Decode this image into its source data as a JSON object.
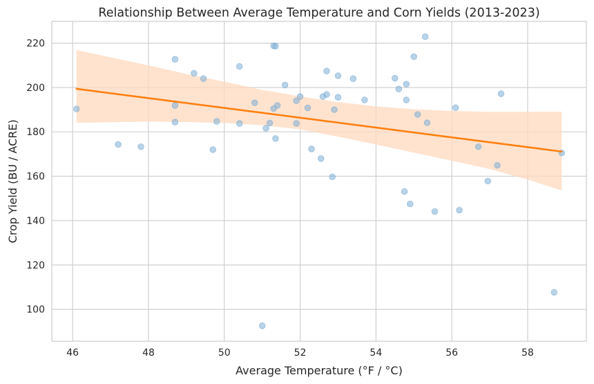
{
  "chart_data": {
    "type": "scatter",
    "title": "Relationship Between Average Temperature and Corn Yields (2013-2023)",
    "xlabel": "Average Temperature (°F / °C)",
    "ylabel": "Crop Yield (BU / ACRE)",
    "xlim": [
      45.45,
      59.55
    ],
    "ylim": [
      85.6,
      229.8
    ],
    "x_ticks": [
      46,
      48,
      50,
      52,
      54,
      56,
      58
    ],
    "y_ticks": [
      100,
      120,
      140,
      160,
      180,
      200,
      220
    ],
    "grid": true,
    "colors": {
      "points": "#7eaed6",
      "trend": "#ff7f0e",
      "band": "#ffd9bf"
    },
    "points": [
      {
        "x": 46.1,
        "y": 190.3
      },
      {
        "x": 47.2,
        "y": 174.3
      },
      {
        "x": 47.8,
        "y": 173.3
      },
      {
        "x": 48.7,
        "y": 212.7
      },
      {
        "x": 48.7,
        "y": 191.9
      },
      {
        "x": 48.7,
        "y": 184.4
      },
      {
        "x": 49.2,
        "y": 206.4
      },
      {
        "x": 49.45,
        "y": 204.0
      },
      {
        "x": 49.7,
        "y": 172.0
      },
      {
        "x": 49.8,
        "y": 184.7
      },
      {
        "x": 50.4,
        "y": 209.5
      },
      {
        "x": 50.4,
        "y": 183.8
      },
      {
        "x": 50.8,
        "y": 193.1
      },
      {
        "x": 51.0,
        "y": 92.6
      },
      {
        "x": 51.1,
        "y": 181.6
      },
      {
        "x": 51.2,
        "y": 184.0
      },
      {
        "x": 51.3,
        "y": 218.8
      },
      {
        "x": 51.35,
        "y": 218.6
      },
      {
        "x": 51.3,
        "y": 190.5
      },
      {
        "x": 51.4,
        "y": 191.9
      },
      {
        "x": 51.35,
        "y": 177.0
      },
      {
        "x": 51.6,
        "y": 201.1
      },
      {
        "x": 51.9,
        "y": 194.0
      },
      {
        "x": 51.9,
        "y": 183.8
      },
      {
        "x": 52.0,
        "y": 195.9
      },
      {
        "x": 52.2,
        "y": 190.8
      },
      {
        "x": 52.3,
        "y": 172.3
      },
      {
        "x": 52.55,
        "y": 168.0
      },
      {
        "x": 52.6,
        "y": 195.9
      },
      {
        "x": 52.7,
        "y": 207.4
      },
      {
        "x": 52.7,
        "y": 196.9
      },
      {
        "x": 52.85,
        "y": 159.7
      },
      {
        "x": 52.9,
        "y": 190.0
      },
      {
        "x": 53.0,
        "y": 205.3
      },
      {
        "x": 53.0,
        "y": 195.6
      },
      {
        "x": 53.4,
        "y": 204.0
      },
      {
        "x": 53.7,
        "y": 194.4
      },
      {
        "x": 54.5,
        "y": 204.2
      },
      {
        "x": 54.6,
        "y": 199.3
      },
      {
        "x": 54.75,
        "y": 153.1
      },
      {
        "x": 54.8,
        "y": 201.5
      },
      {
        "x": 54.8,
        "y": 194.4
      },
      {
        "x": 54.9,
        "y": 147.5
      },
      {
        "x": 55.0,
        "y": 213.9
      },
      {
        "x": 55.1,
        "y": 187.8
      },
      {
        "x": 55.3,
        "y": 222.9
      },
      {
        "x": 55.35,
        "y": 184.1
      },
      {
        "x": 55.55,
        "y": 144.1
      },
      {
        "x": 56.1,
        "y": 190.9
      },
      {
        "x": 56.2,
        "y": 144.7
      },
      {
        "x": 56.7,
        "y": 173.3
      },
      {
        "x": 56.95,
        "y": 157.8
      },
      {
        "x": 57.2,
        "y": 164.9
      },
      {
        "x": 57.3,
        "y": 197.2
      },
      {
        "x": 58.7,
        "y": 107.7
      },
      {
        "x": 58.9,
        "y": 170.5
      }
    ],
    "trend_line": {
      "x": [
        46.1,
        58.9
      ],
      "y": [
        199.4,
        171.1
      ]
    },
    "confidence_band": {
      "x": [
        46.1,
        47.0,
        48.0,
        49.0,
        50.0,
        51.0,
        52.0,
        53.0,
        54.0,
        55.0,
        56.0,
        57.0,
        58.0,
        58.9
      ],
      "lower": [
        184.1,
        184.3,
        184.6,
        184.4,
        184.0,
        183.0,
        181.1,
        177.8,
        174.3,
        170.6,
        167.0,
        163.2,
        158.5,
        153.5
      ],
      "upper": [
        216.9,
        213.6,
        210.0,
        206.1,
        202.6,
        198.9,
        196.0,
        193.4,
        191.5,
        190.2,
        189.4,
        189.0,
        189.0,
        189.1
      ]
    }
  }
}
